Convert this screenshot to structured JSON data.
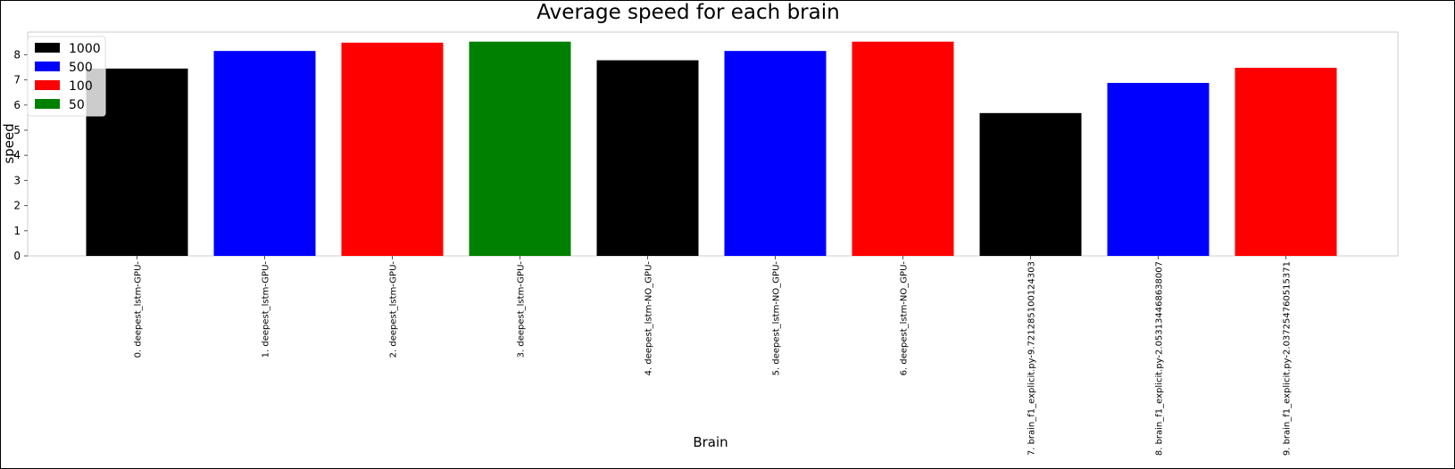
{
  "chart_data": {
    "type": "bar",
    "title": "Average speed for each brain",
    "xlabel": "Brain",
    "ylabel": "speed",
    "ylim": [
      0,
      8.9
    ],
    "yticks": [
      0,
      1,
      2,
      3,
      4,
      5,
      6,
      7,
      8
    ],
    "grid": false,
    "legend_position": "top-left",
    "categories": [
      "0. deepest_lstm-GPU-",
      "1. deepest_lstm-GPU-",
      "2. deepest_lstm-GPU-",
      "3. deepest_lstm-GPU-",
      "4. deepest_lstm-NO_GPU-",
      "5. deepest_lstm-NO_GPU-",
      "6. deepest_lstm-NO_GPU-",
      "7. brain_f1_explicit.py-9.721285100124303",
      "8. brain_f1_explicit.py-2.053134468638007",
      "9. brain_f1_explicit.py-2.037254760515371"
    ],
    "values": [
      7.45,
      8.15,
      8.48,
      8.52,
      7.78,
      8.15,
      8.52,
      5.68,
      6.88,
      7.48
    ],
    "bar_series": [
      "1000",
      "500",
      "100",
      "50",
      "1000",
      "500",
      "100",
      "1000",
      "500",
      "100"
    ],
    "legend": [
      {
        "name": "1000",
        "color": "#000000"
      },
      {
        "name": "500",
        "color": "#0000ff"
      },
      {
        "name": "100",
        "color": "#ff0000"
      },
      {
        "name": "50",
        "color": "#008000"
      }
    ]
  }
}
